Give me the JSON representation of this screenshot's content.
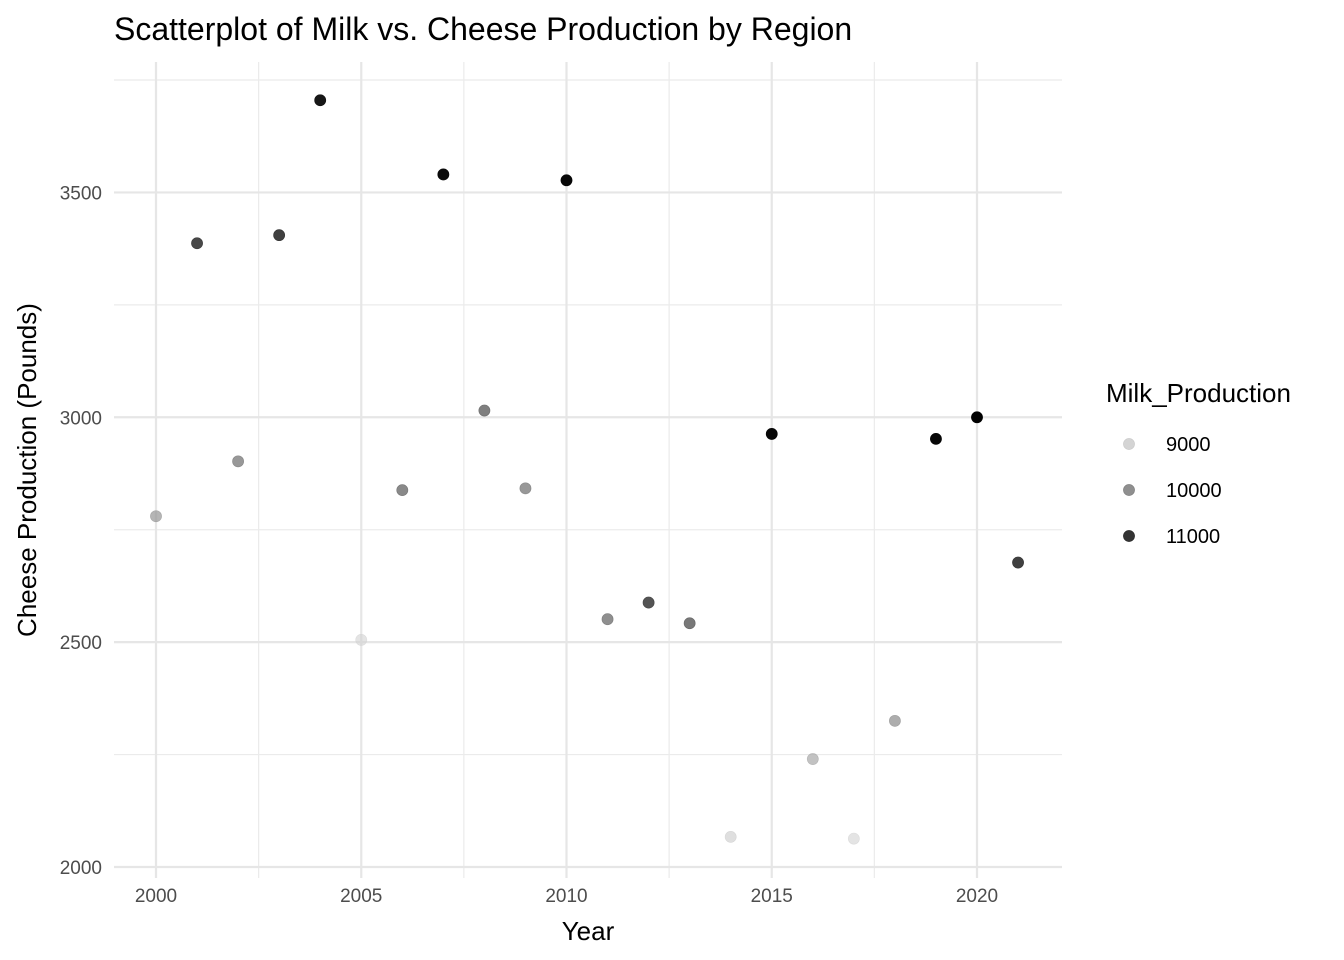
{
  "chart_data": {
    "type": "scatter",
    "title": "Scatterplot of Milk vs. Cheese Production by Region",
    "xlabel": "Year",
    "ylabel": "Cheese Production (Pounds)",
    "xlim": [
      1999,
      2022
    ],
    "ylim": [
      2000,
      3750
    ],
    "x_ticks": [
      2000,
      2005,
      2010,
      2015,
      2020
    ],
    "y_ticks": [
      2000,
      2500,
      3000,
      3500
    ],
    "grid": true,
    "legend": {
      "title": "Milk_Production",
      "placement": "right",
      "entries": [
        {
          "label": "9000",
          "value": 9000
        },
        {
          "label": "10000",
          "value": 10000
        },
        {
          "label": "11000",
          "value": 11000
        }
      ]
    },
    "color_range": {
      "min": 8500,
      "max": 11500,
      "low_color": "#e0e0e0",
      "high_color": "#000000"
    },
    "points": [
      {
        "x": 2000,
        "y": 2780,
        "milk": 9500
      },
      {
        "x": 2001,
        "y": 3387,
        "milk": 10800
      },
      {
        "x": 2002,
        "y": 2902,
        "milk": 9900
      },
      {
        "x": 2003,
        "y": 3405,
        "milk": 10900
      },
      {
        "x": 2004,
        "y": 3705,
        "milk": 11300
      },
      {
        "x": 2005,
        "y": 2505,
        "milk": 8700
      },
      {
        "x": 2006,
        "y": 2838,
        "milk": 10100
      },
      {
        "x": 2007,
        "y": 3540,
        "milk": 11400
      },
      {
        "x": 2008,
        "y": 3015,
        "milk": 10200
      },
      {
        "x": 2009,
        "y": 2842,
        "milk": 9900
      },
      {
        "x": 2010,
        "y": 3527,
        "milk": 11450
      },
      {
        "x": 2011,
        "y": 2551,
        "milk": 10000
      },
      {
        "x": 2012,
        "y": 2588,
        "milk": 10700
      },
      {
        "x": 2013,
        "y": 2542,
        "milk": 10300
      },
      {
        "x": 2014,
        "y": 2067,
        "milk": 8800
      },
      {
        "x": 2015,
        "y": 2963,
        "milk": 11450
      },
      {
        "x": 2016,
        "y": 2240,
        "milk": 9300
      },
      {
        "x": 2017,
        "y": 2063,
        "milk": 8700
      },
      {
        "x": 2018,
        "y": 2325,
        "milk": 9600
      },
      {
        "x": 2019,
        "y": 2952,
        "milk": 11450
      },
      {
        "x": 2020,
        "y": 3000,
        "milk": 11500
      },
      {
        "x": 2021,
        "y": 2677,
        "milk": 10900
      }
    ]
  }
}
